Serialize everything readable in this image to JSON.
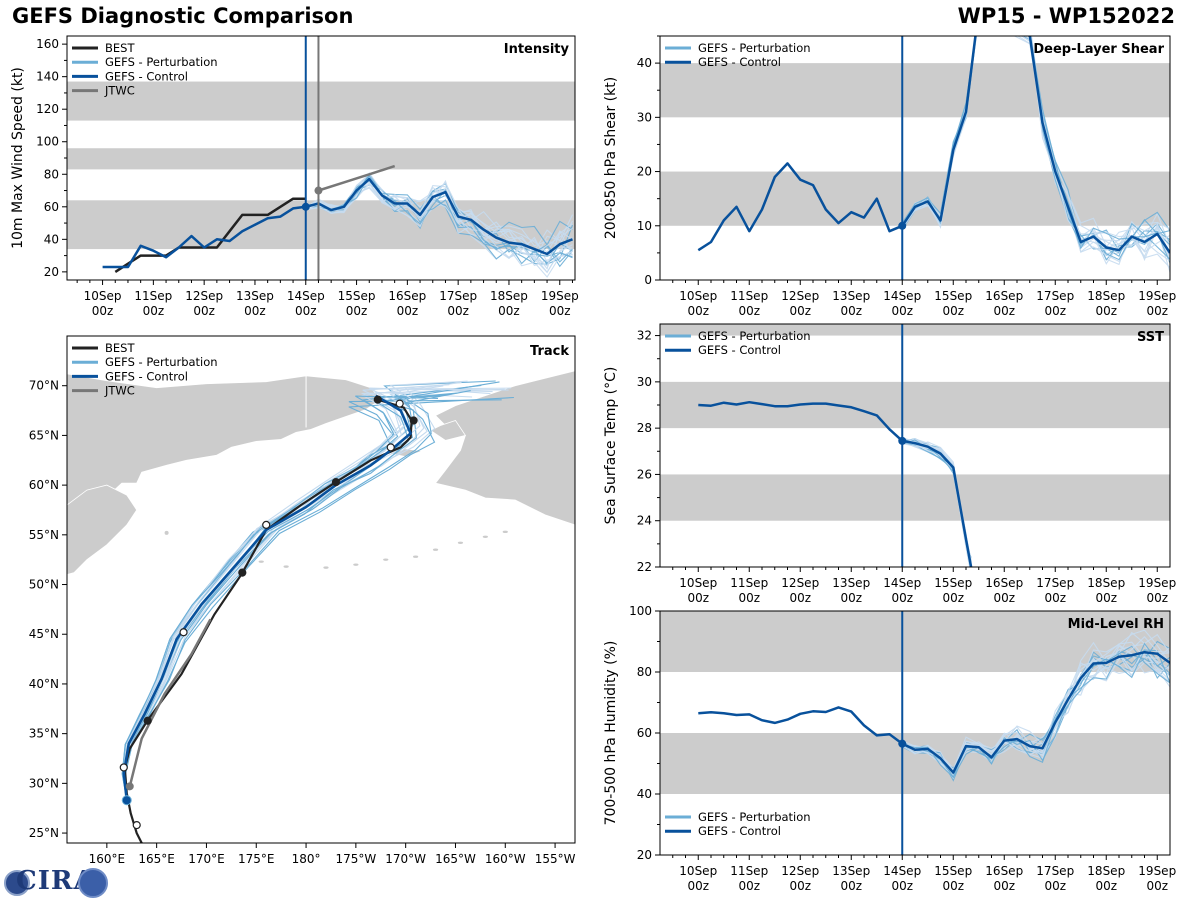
{
  "title_left": "GEFS Diagnostic Comparison",
  "title_right": "WP15 - WP152022",
  "colors": {
    "best": "#222222",
    "perturbation": "#6baed6",
    "perturbation_light": "#c6dbef",
    "control": "#08519c",
    "jtwc": "#777777",
    "band": "#cccccc",
    "land": "#cccccc"
  },
  "time_ticks": [
    "10Sep",
    "11Sep",
    "12Sep",
    "13Sep",
    "14Sep",
    "15Sep",
    "16Sep",
    "17Sep",
    "18Sep",
    "19Sep"
  ],
  "time_tick_sub": "00z",
  "chart_data": [
    {
      "id": "intensity",
      "type": "line",
      "title": "Intensity",
      "ylabel": "10m Max Wind Speed (kt)",
      "xlim": [
        -0.7,
        9.3
      ],
      "ylim": [
        15,
        165
      ],
      "yticks": [
        20,
        40,
        60,
        80,
        100,
        120,
        140,
        160
      ],
      "bands": [
        [
          34,
          64
        ],
        [
          83,
          96
        ],
        [
          113,
          137
        ]
      ],
      "vlines": [
        {
          "x": 4.0,
          "color": "control"
        },
        {
          "x": 4.25,
          "color": "jtwc"
        }
      ],
      "legend": [
        "BEST",
        "GEFS - Perturbation",
        "GEFS - Control",
        "JTWC"
      ],
      "series": [
        {
          "name": "BEST",
          "x": [
            0.25,
            0.5,
            0.75,
            1.0,
            1.25,
            1.5,
            1.75,
            2.0,
            2.25,
            2.5,
            2.75,
            3.0,
            3.25,
            3.5,
            3.75,
            4.0
          ],
          "y": [
            20,
            25,
            30,
            30,
            30,
            35,
            35,
            35,
            35,
            45,
            55,
            55,
            55,
            60,
            65,
            65
          ]
        },
        {
          "name": "GEFS - Control",
          "x": [
            0.0,
            0.25,
            0.5,
            0.75,
            1.0,
            1.25,
            1.5,
            1.75,
            2.0,
            2.25,
            2.5,
            2.75,
            3.0,
            3.25,
            3.5,
            3.75,
            4.0,
            4.25,
            4.5,
            4.75,
            5.0,
            5.25,
            5.5,
            5.75,
            6.0,
            6.25,
            6.5,
            6.75,
            7.0,
            7.25,
            7.5,
            7.75,
            8.0,
            8.25,
            8.5,
            8.75,
            9.0,
            9.25
          ],
          "y": [
            23,
            23,
            23,
            36,
            33,
            29,
            35,
            42,
            35,
            40,
            39,
            45,
            49,
            53,
            54,
            59,
            60,
            62,
            58,
            60,
            70,
            77,
            67,
            62,
            62,
            55,
            66,
            69,
            54,
            52,
            46,
            41,
            38,
            37,
            34,
            31,
            37,
            40
          ]
        },
        {
          "name": "JTWC",
          "x": [
            4.25,
            4.75,
            5.25,
            5.75
          ],
          "y": [
            70,
            75,
            80,
            85
          ]
        }
      ],
      "markers": [
        {
          "name": "GEFS - Control",
          "x": 4.0,
          "y": 60
        },
        {
          "name": "JTWC",
          "x": 4.25,
          "y": 70
        }
      ]
    },
    {
      "id": "shear",
      "type": "line",
      "title": "Deep-Layer Shear",
      "ylabel": "200-850 hPa Shear (kt)",
      "xlim": [
        -0.75,
        9.25
      ],
      "ylim": [
        0,
        45
      ],
      "yticks": [
        0,
        10,
        20,
        30,
        40
      ],
      "bands": [
        [
          10,
          20
        ],
        [
          30,
          40
        ]
      ],
      "vlines": [
        {
          "x": 4.0,
          "color": "control"
        }
      ],
      "legend": [
        "GEFS - Perturbation",
        "GEFS - Control"
      ],
      "series": [
        {
          "name": "GEFS - Control",
          "x": [
            0.0,
            0.25,
            0.5,
            0.75,
            1.0,
            1.25,
            1.5,
            1.75,
            2.0,
            2.25,
            2.5,
            2.75,
            3.0,
            3.25,
            3.5,
            3.75,
            4.0,
            4.25,
            4.5,
            4.75,
            5.0,
            5.25,
            5.5,
            6.5,
            6.75,
            7.0,
            7.25,
            7.5,
            7.75,
            8.0,
            8.25,
            8.5,
            8.75,
            9.0,
            9.25
          ],
          "y": [
            5.5,
            7,
            11,
            13.5,
            9,
            13,
            19,
            21.5,
            18.5,
            17.5,
            13,
            10.5,
            12.5,
            11.5,
            15,
            9,
            10,
            13.5,
            14.5,
            11,
            24,
            31,
            50,
            45,
            29,
            20,
            13.5,
            7,
            8,
            6,
            5.5,
            8,
            7,
            8.5,
            5
          ]
        }
      ],
      "markers": [
        {
          "name": "GEFS - Control",
          "x": 4.0,
          "y": 10
        }
      ]
    },
    {
      "id": "sst",
      "type": "line",
      "title": "SST",
      "ylabel": "Sea Surface Temp (°C)",
      "xlim": [
        -0.75,
        9.25
      ],
      "ylim": [
        22,
        32.5
      ],
      "yticks": [
        22,
        24,
        26,
        28,
        30,
        32
      ],
      "bands": [
        [
          24,
          26
        ],
        [
          28,
          30
        ],
        [
          32,
          32.5
        ]
      ],
      "vlines": [
        {
          "x": 4.0,
          "color": "control"
        }
      ],
      "legend": [
        "GEFS - Perturbation",
        "GEFS - Control"
      ],
      "series": [
        {
          "name": "GEFS - Control",
          "x": [
            0.0,
            0.25,
            0.5,
            0.75,
            1.0,
            1.25,
            1.5,
            1.75,
            2.0,
            2.25,
            2.5,
            2.75,
            3.0,
            3.25,
            3.5,
            3.75,
            4.0,
            4.25,
            4.5,
            4.75,
            5.0,
            5.25,
            5.35
          ],
          "y": [
            29.0,
            28.97,
            29.1,
            29.02,
            29.12,
            29.04,
            28.95,
            28.95,
            29.02,
            29.06,
            29.06,
            28.98,
            28.9,
            28.73,
            28.55,
            27.95,
            27.45,
            27.35,
            27.2,
            26.9,
            26.3,
            23.2,
            22.0
          ]
        }
      ],
      "markers": [
        {
          "name": "GEFS - Control",
          "x": 4.0,
          "y": 27.45
        }
      ]
    },
    {
      "id": "rh",
      "type": "line",
      "title": "Mid-Level RH",
      "ylabel": "700-500 hPa Humidity (%)",
      "xlim": [
        -0.75,
        9.25
      ],
      "ylim": [
        20,
        100
      ],
      "yticks": [
        20,
        40,
        60,
        80,
        100
      ],
      "bands": [
        [
          40,
          60
        ],
        [
          80,
          100
        ]
      ],
      "vlines": [
        {
          "x": 4.0,
          "color": "control"
        }
      ],
      "legend": [
        "GEFS - Perturbation",
        "GEFS - Control"
      ],
      "series": [
        {
          "name": "GEFS - Control",
          "x": [
            0.0,
            0.25,
            0.5,
            0.75,
            1.0,
            1.25,
            1.5,
            1.75,
            2.0,
            2.25,
            2.5,
            2.75,
            3.0,
            3.25,
            3.5,
            3.75,
            4.0,
            4.25,
            4.5,
            4.75,
            5.0,
            5.25,
            5.5,
            5.75,
            6.0,
            6.25,
            6.5,
            6.75,
            7.0,
            7.25,
            7.5,
            7.75,
            8.0,
            8.25,
            8.5,
            8.75,
            9.0,
            9.25
          ],
          "y": [
            66.5,
            66.8,
            66.5,
            65.9,
            66.1,
            64.2,
            63.3,
            64.4,
            66.3,
            67.1,
            66.9,
            68.4,
            67.0,
            62.5,
            59.2,
            59.6,
            56.5,
            54.5,
            54.8,
            51.7,
            47.0,
            55.7,
            55.3,
            52.0,
            57.5,
            58.0,
            55.7,
            55.0,
            63.5,
            71.0,
            78.0,
            82.8,
            83.0,
            85.0,
            85.5,
            86.5,
            86.0,
            83.0
          ]
        }
      ],
      "markers": [
        {
          "name": "GEFS - Control",
          "x": 4.0,
          "y": 56.5
        }
      ]
    },
    {
      "id": "track",
      "type": "map",
      "title": "Track",
      "lon_range": [
        156,
        207
      ],
      "lat_range": [
        24,
        75
      ],
      "lat_ticks": [
        25,
        30,
        35,
        40,
        45,
        50,
        55,
        60,
        65,
        70
      ],
      "lat_labels": [
        "25°N",
        "30°N",
        "35°N",
        "40°N",
        "45°N",
        "50°N",
        "55°N",
        "60°N",
        "65°N",
        "70°N"
      ],
      "lon_ticks": [
        160,
        165,
        170,
        175,
        180,
        185,
        190,
        195,
        200,
        205
      ],
      "lon_labels": [
        "160°E",
        "165°E",
        "170°E",
        "175°E",
        "180°",
        "175°W",
        "170°W",
        "165°W",
        "160°W",
        "155°W"
      ],
      "legend": [
        "BEST",
        "GEFS - Perturbation",
        "GEFS - Control",
        "JTWC"
      ],
      "best_track": {
        "lon": [
          163.5,
          163.0,
          162.4,
          162.0,
          161.8,
          162.3,
          164.2,
          167.5,
          170.8,
          173.5,
          176.0,
          179.5,
          183.0,
          186.5,
          189.5,
          190.5,
          190.6,
          189.8,
          187.2
        ],
        "lat": [
          24.0,
          25.0,
          27.0,
          29.0,
          31.5,
          33.5,
          36.5,
          41.0,
          47.0,
          51.0,
          55.5,
          58.0,
          60.3,
          62.5,
          63.8,
          64.8,
          66.5,
          67.8,
          68.6
        ]
      },
      "control_track": {
        "lon": [
          162.0,
          161.7,
          162.2,
          163.8,
          165.5,
          167.0,
          169.5,
          173.0,
          176.0,
          180.0,
          183.0,
          186.5,
          188.5,
          190.5,
          189.5,
          187.0
        ],
        "lat": [
          28.3,
          31.0,
          34.0,
          37.0,
          40.5,
          44.5,
          48.0,
          52.0,
          55.5,
          57.8,
          60.0,
          62.0,
          63.5,
          65.2,
          67.5,
          69.0
        ]
      },
      "jtwc_track": {
        "lon": [
          162.3,
          163.5,
          165.8,
          168.5,
          170.4
        ],
        "lat": [
          29.7,
          34.5,
          39.0,
          43.0,
          46.5
        ]
      },
      "best_dots": [
        [
          163.0,
          25.8
        ],
        [
          161.7,
          31.6
        ],
        [
          164.1,
          36.3
        ],
        [
          167.7,
          45.2
        ],
        [
          173.6,
          51.2
        ],
        [
          176.0,
          56.0
        ],
        [
          183.0,
          60.3
        ],
        [
          188.5,
          63.8
        ],
        [
          190.8,
          66.5
        ],
        [
          189.4,
          68.2
        ],
        [
          187.2,
          68.6
        ]
      ],
      "best_dots_open": [
        true,
        true,
        false,
        true,
        false,
        true,
        false,
        true,
        false,
        true,
        false
      ],
      "control_dot": [
        162.0,
        28.3
      ],
      "jtwc_dot": [
        162.3,
        29.7
      ]
    }
  ]
}
